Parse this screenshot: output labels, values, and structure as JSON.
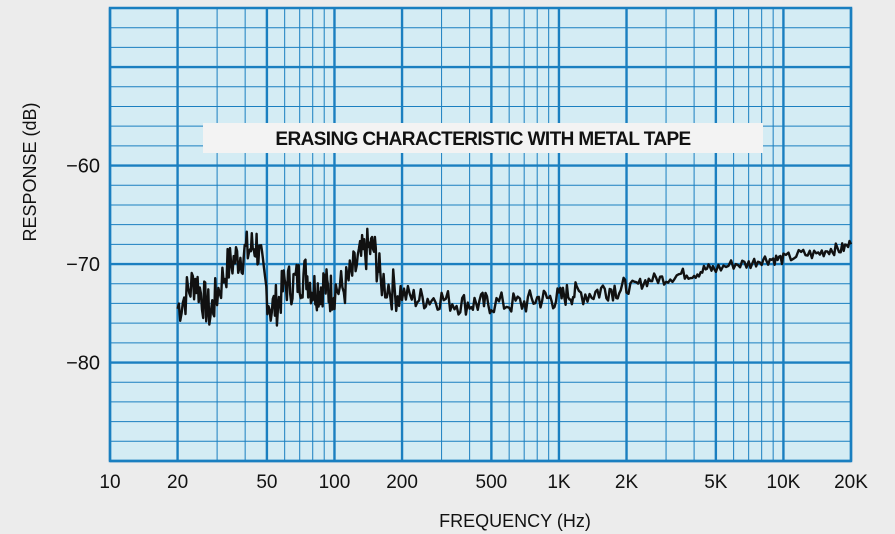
{
  "chart_data": {
    "type": "line",
    "title": "ERASING CHARACTERISTIC WITH METAL TAPE",
    "xlabel": "FREQUENCY (Hz)",
    "ylabel": "RESPONSE (dB)",
    "x_scale": "log",
    "xlim": [
      10,
      20000
    ],
    "ylim": [
      -90,
      -44
    ],
    "grid": true,
    "x_ticks": [
      {
        "value": 10,
        "label": "10"
      },
      {
        "value": 20,
        "label": "20"
      },
      {
        "value": 50,
        "label": "50"
      },
      {
        "value": 100,
        "label": "100"
      },
      {
        "value": 200,
        "label": "200"
      },
      {
        "value": 500,
        "label": "500"
      },
      {
        "value": 1000,
        "label": "1K"
      },
      {
        "value": 2000,
        "label": "2K"
      },
      {
        "value": 5000,
        "label": "5K"
      },
      {
        "value": 10000,
        "label": "10K"
      },
      {
        "value": 20000,
        "label": "20K"
      }
    ],
    "y_ticks": [
      {
        "value": -60,
        "label": "−60"
      },
      {
        "value": -70,
        "label": "−70"
      },
      {
        "value": -80,
        "label": "−80"
      }
    ],
    "colors": {
      "grid": "#1a7fc0",
      "background": "#d4ecf4",
      "line": "#111111"
    },
    "series": [
      {
        "x": [
          20,
          22,
          24,
          26,
          28,
          30,
          33,
          36,
          39,
          42,
          45,
          48,
          52,
          56,
          60,
          65,
          70,
          75,
          80,
          85,
          90,
          95,
          100,
          110,
          120,
          130,
          140,
          150,
          160,
          180,
          200,
          230,
          260,
          300,
          350,
          400,
          450,
          500,
          600,
          700,
          800,
          900,
          1000,
          1100,
          1200,
          1400,
          1600,
          1800,
          2000,
          2300,
          2600,
          3000,
          3500,
          4000,
          4500,
          5000,
          6000,
          7000,
          8000,
          9000,
          10000,
          12000,
          14000,
          16000,
          18000,
          20000
        ],
        "y": [
          -74.5,
          -73,
          -71.5,
          -73.5,
          -75,
          -73,
          -70.5,
          -69.5,
          -69,
          -68.5,
          -68,
          -71,
          -74.5,
          -74,
          -72,
          -72,
          -71.5,
          -71,
          -72.5,
          -72.5,
          -72,
          -73,
          -72.5,
          -72.5,
          -71,
          -69.5,
          -68.5,
          -68.5,
          -71.5,
          -72.5,
          -73,
          -73.5,
          -73.5,
          -73.5,
          -74,
          -74,
          -74,
          -74,
          -74,
          -74,
          -73.5,
          -73.5,
          -73.5,
          -73,
          -73,
          -73,
          -72.5,
          -72.5,
          -72.5,
          -72,
          -71.5,
          -71.5,
          -71,
          -71,
          -70.5,
          -70.5,
          -70,
          -70,
          -69.5,
          -69.5,
          -69.5,
          -69,
          -69,
          -68.5,
          -68.5,
          -68
        ]
      }
    ]
  }
}
